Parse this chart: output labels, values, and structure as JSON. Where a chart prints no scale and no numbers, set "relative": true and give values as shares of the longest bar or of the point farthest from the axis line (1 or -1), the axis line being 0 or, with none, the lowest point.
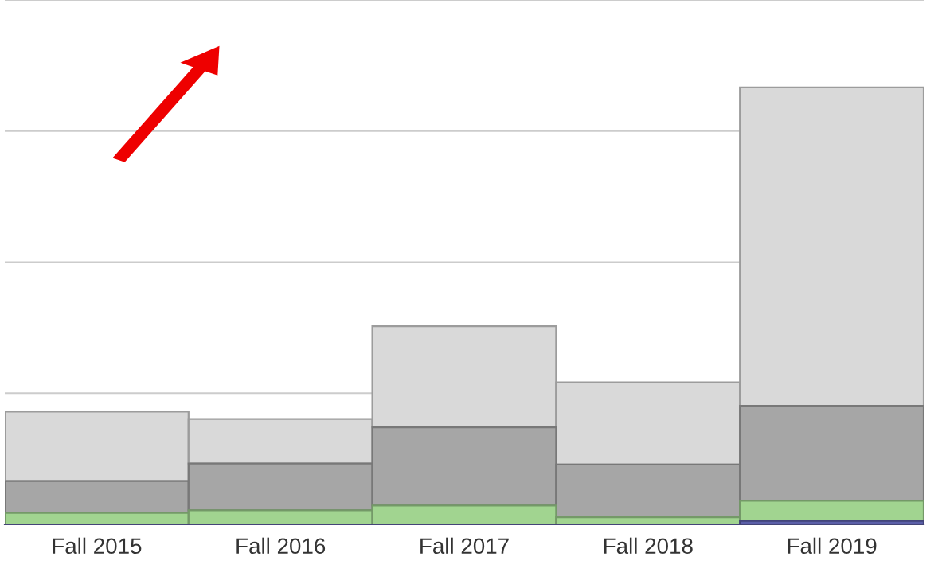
{
  "chart_data": {
    "type": "bar",
    "stacked": true,
    "relative": true,
    "grid": "y",
    "categories": [
      "Fall 2015",
      "Fall 2016",
      "Fall 2017",
      "Fall 2018",
      "Fall 2019"
    ],
    "series": [
      {
        "color": "#5b5fa8",
        "values": [
          0,
          0,
          0,
          0,
          0.008
        ]
      },
      {
        "color": "#a1d490",
        "values": [
          0.026,
          0.032,
          0.043,
          0.016,
          0.046
        ]
      },
      {
        "color": "#a6a6a6",
        "values": [
          0.073,
          0.107,
          0.179,
          0.121,
          0.217
        ]
      },
      {
        "color": "#d9d9d9",
        "values": [
          0.159,
          0.102,
          0.231,
          0.188,
          0.729
        ]
      }
    ]
  }
}
